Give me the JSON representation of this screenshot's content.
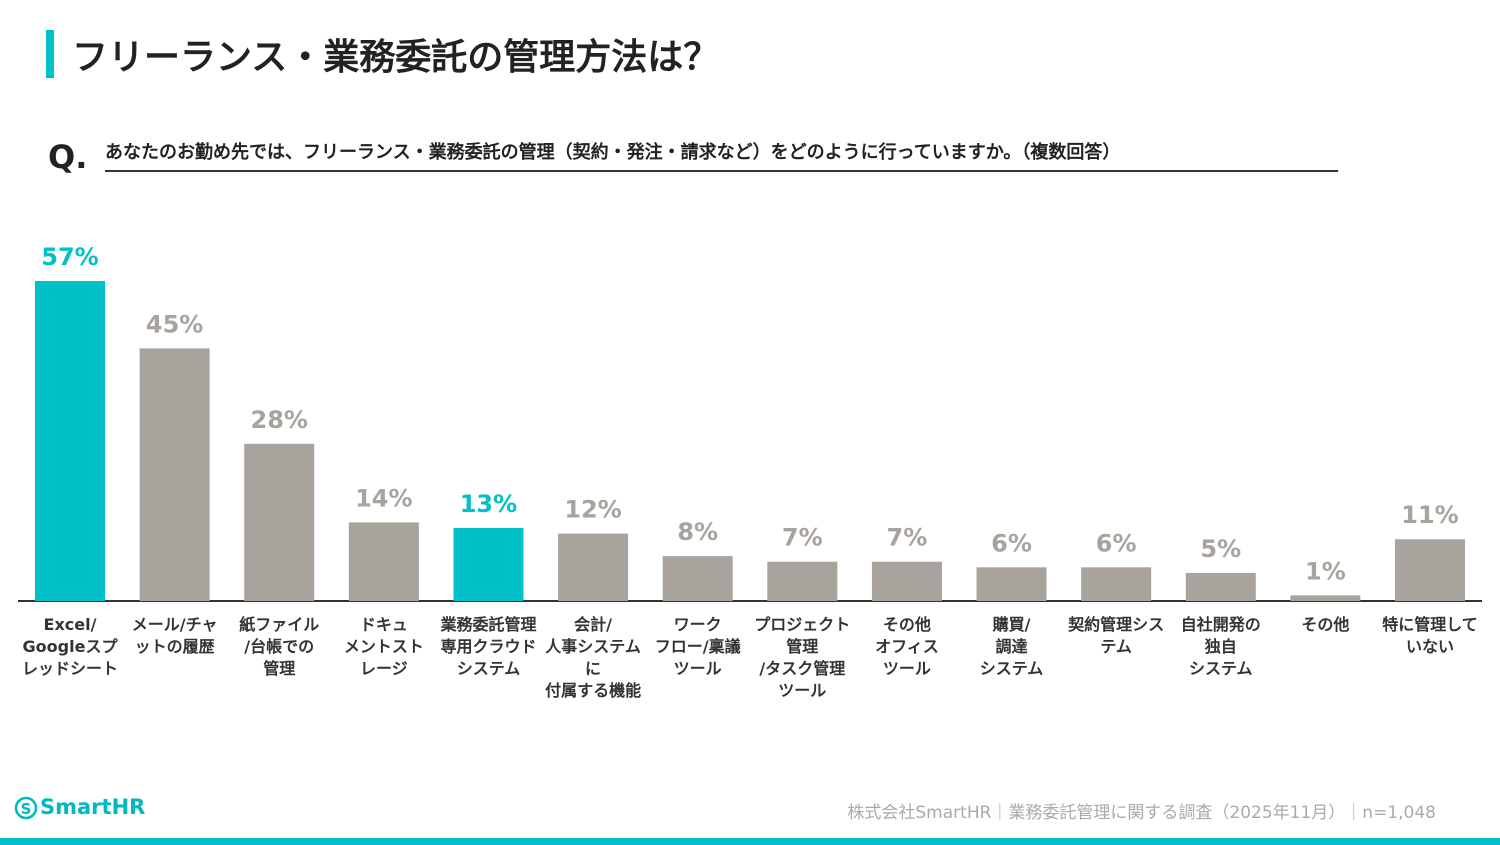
{
  "header": {
    "title": "フリーランス・業務委託の管理方法は？",
    "q_mark": "Q.",
    "question": "あなたのお勤め先では、フリーランス・業務委託の管理（契約・発注・請求など）をどのように行っていますか。（複数回答）"
  },
  "chart_data": {
    "type": "bar",
    "categories": [
      "Excel/\nGoogleスプレッドシート",
      "メール/チャットの履歴",
      "紙ファイル\n/台帳での\n管理",
      "ドキュ\nメントスト\nレージ",
      "業務委託管理専用クラウドシステム",
      "会計/\n人事システムに\n付属する機能",
      "ワーク\nフロー/稟議\nツール",
      "プロジェクト管理\n/タスク管理\nツール",
      "その他\nオフィス\nツール",
      "購買/\n調達\nシステム",
      "契約管理システム",
      "自社開発の\n独自\nシステム",
      "その他",
      "特に管理して\nいない"
    ],
    "values": [
      57,
      45,
      28,
      14,
      13,
      12,
      8,
      7,
      7,
      6,
      6,
      5,
      1,
      11
    ],
    "value_labels": [
      "57%",
      "45%",
      "28%",
      "14%",
      "13%",
      "12%",
      "8%",
      "7%",
      "7%",
      "6%",
      "6%",
      "5%",
      "1%",
      "11%"
    ],
    "colors": [
      "#00c0c8",
      "#a8a39c",
      "#a8a39c",
      "#a8a39c",
      "#00c0c8",
      "#a8a39c",
      "#a8a39c",
      "#a8a39c",
      "#a8a39c",
      "#a8a39c",
      "#a8a39c",
      "#a8a39c",
      "#a8a39c",
      "#a8a39c"
    ]
  },
  "footer": {
    "logo": "SmartHR",
    "source": "株式会社SmartHR｜業務委託管理に関する調査（2025年11月）｜n=1,048"
  }
}
